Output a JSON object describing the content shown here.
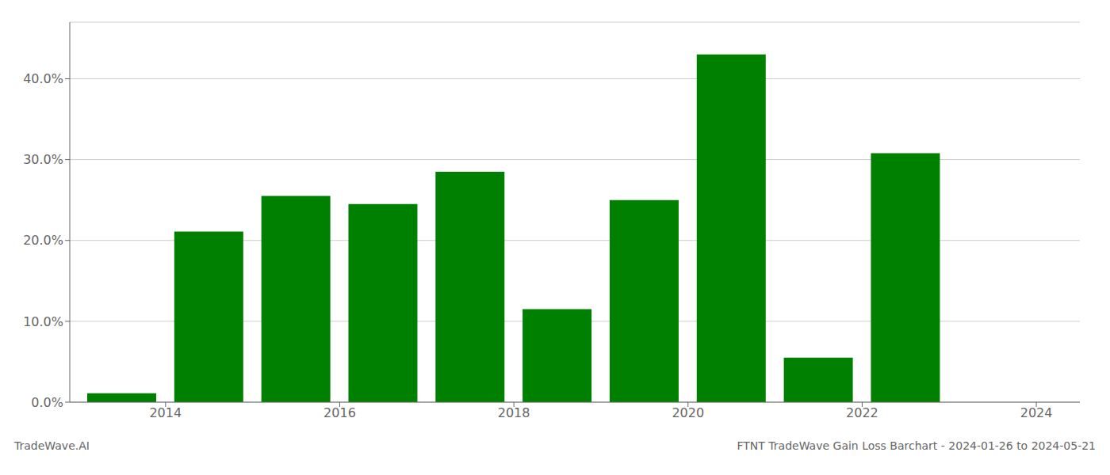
{
  "chart_data": {
    "type": "bar",
    "title": "FTNT TradeWave Gain Loss Barchart - 2024-01-26 to 2024-05-21",
    "annotations": [
      "TradeWave.AI"
    ],
    "x": [
      2014,
      2015,
      2016,
      2017,
      2018,
      2019,
      2020,
      2021,
      2022,
      2023,
      2024
    ],
    "values": [
      0.011,
      0.211,
      0.255,
      0.245,
      0.285,
      0.115,
      0.25,
      0.43,
      0.055,
      0.308,
      null
    ],
    "color": "#008000",
    "xlim": [
      2013.4,
      2025.0
    ],
    "xticks": [
      {
        "value": 2014.5,
        "label": "2014"
      },
      {
        "value": 2016.5,
        "label": "2016"
      },
      {
        "value": 2018.5,
        "label": "2018"
      },
      {
        "value": 2020.5,
        "label": "2020"
      },
      {
        "value": 2022.5,
        "label": "2022"
      },
      {
        "value": 2024.5,
        "label": "2024"
      }
    ],
    "ylim": [
      0,
      0.47
    ],
    "yticks": [
      {
        "value": 0.0,
        "label": "0.0%"
      },
      {
        "value": 0.1,
        "label": "10.0%"
      },
      {
        "value": 0.2,
        "label": "20.0%"
      },
      {
        "value": 0.3,
        "label": "30.0%"
      },
      {
        "value": 0.4,
        "label": "40.0%"
      }
    ],
    "grid": true
  }
}
